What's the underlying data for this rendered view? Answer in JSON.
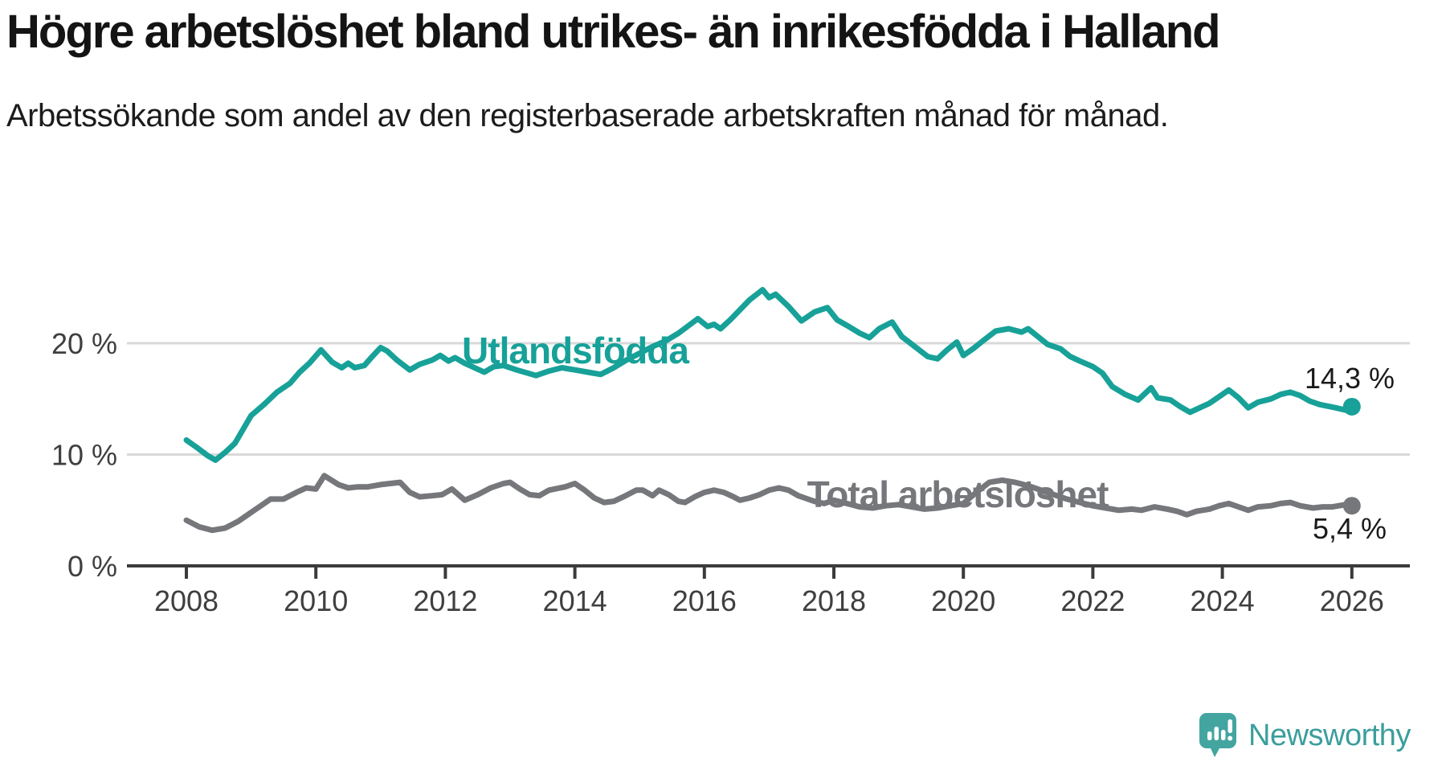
{
  "header": {
    "title": "Högre arbetslöshet bland utrikes- än inrikesfödda i Halland",
    "subtitle": "Arbetssökande som andel av den registerbaserade arbetskraften månad för månad."
  },
  "footer": {
    "brand": "Newsworthy",
    "logo_icon": "speech-bubble-bar-chart-icon"
  },
  "colors": {
    "teal": "#17a198",
    "gray": "#76777b",
    "axis": "#3b3b3b",
    "gridline": "#d9d9d9",
    "tick_label": "#3f3f3f",
    "value_label": "#1a1a1a",
    "logo_teal": "#44a5a0"
  },
  "chart_data": {
    "type": "line",
    "title": "Högre arbetslöshet bland utrikes- än inrikesfödda i Halland",
    "xlabel": "",
    "ylabel": "",
    "xlim": [
      2007.1,
      2026.9
    ],
    "ylim": [
      0,
      25
    ],
    "x_ticks": [
      2008,
      2010,
      2012,
      2014,
      2016,
      2018,
      2020,
      2022,
      2024,
      2026
    ],
    "y_ticks": [
      {
        "value": 0,
        "label": "0 %"
      },
      {
        "value": 10,
        "label": "10 %"
      },
      {
        "value": 20,
        "label": "20 %"
      }
    ],
    "grid": "horizontal",
    "legend_position": "inline-labels",
    "series": [
      {
        "name": "Utlandsfödda",
        "color": "#17a198",
        "end_value_label": "14,3 %",
        "points": [
          [
            2008.0,
            11.3
          ],
          [
            2008.17,
            10.6
          ],
          [
            2008.33,
            9.9
          ],
          [
            2008.45,
            9.5
          ],
          [
            2008.6,
            10.2
          ],
          [
            2008.75,
            11.0
          ],
          [
            2009.0,
            13.5
          ],
          [
            2009.2,
            14.5
          ],
          [
            2009.4,
            15.6
          ],
          [
            2009.6,
            16.4
          ],
          [
            2009.75,
            17.4
          ],
          [
            2009.9,
            18.2
          ],
          [
            2010.08,
            19.4
          ],
          [
            2010.25,
            18.3
          ],
          [
            2010.4,
            17.8
          ],
          [
            2010.5,
            18.2
          ],
          [
            2010.6,
            17.8
          ],
          [
            2010.75,
            18.0
          ],
          [
            2010.87,
            18.8
          ],
          [
            2011.0,
            19.6
          ],
          [
            2011.1,
            19.3
          ],
          [
            2011.25,
            18.5
          ],
          [
            2011.45,
            17.6
          ],
          [
            2011.6,
            18.1
          ],
          [
            2011.8,
            18.5
          ],
          [
            2011.92,
            18.9
          ],
          [
            2012.05,
            18.4
          ],
          [
            2012.15,
            18.7
          ],
          [
            2012.3,
            18.2
          ],
          [
            2012.45,
            17.8
          ],
          [
            2012.6,
            17.4
          ],
          [
            2012.75,
            17.9
          ],
          [
            2012.9,
            18.0
          ],
          [
            2013.1,
            17.6
          ],
          [
            2013.4,
            17.1
          ],
          [
            2013.6,
            17.5
          ],
          [
            2013.8,
            17.8
          ],
          [
            2014.0,
            17.6
          ],
          [
            2014.2,
            17.4
          ],
          [
            2014.4,
            17.2
          ],
          [
            2014.6,
            17.8
          ],
          [
            2014.8,
            18.5
          ],
          [
            2015.0,
            19.1
          ],
          [
            2015.2,
            19.7
          ],
          [
            2015.4,
            20.2
          ],
          [
            2015.6,
            20.9
          ],
          [
            2015.9,
            22.2
          ],
          [
            2016.05,
            21.5
          ],
          [
            2016.15,
            21.7
          ],
          [
            2016.25,
            21.3
          ],
          [
            2016.4,
            22.1
          ],
          [
            2016.55,
            23.0
          ],
          [
            2016.7,
            23.9
          ],
          [
            2016.9,
            24.8
          ],
          [
            2017.0,
            24.1
          ],
          [
            2017.1,
            24.4
          ],
          [
            2017.3,
            23.3
          ],
          [
            2017.5,
            22.0
          ],
          [
            2017.7,
            22.8
          ],
          [
            2017.9,
            23.2
          ],
          [
            2018.05,
            22.1
          ],
          [
            2018.2,
            21.6
          ],
          [
            2018.4,
            20.9
          ],
          [
            2018.55,
            20.5
          ],
          [
            2018.7,
            21.3
          ],
          [
            2018.9,
            21.9
          ],
          [
            2019.05,
            20.6
          ],
          [
            2019.25,
            19.7
          ],
          [
            2019.45,
            18.8
          ],
          [
            2019.6,
            18.6
          ],
          [
            2019.75,
            19.4
          ],
          [
            2019.9,
            20.1
          ],
          [
            2020.0,
            18.9
          ],
          [
            2020.15,
            19.5
          ],
          [
            2020.3,
            20.2
          ],
          [
            2020.5,
            21.1
          ],
          [
            2020.7,
            21.3
          ],
          [
            2020.9,
            21.0
          ],
          [
            2021.0,
            21.3
          ],
          [
            2021.15,
            20.6
          ],
          [
            2021.3,
            19.9
          ],
          [
            2021.5,
            19.5
          ],
          [
            2021.65,
            18.8
          ],
          [
            2021.8,
            18.4
          ],
          [
            2022.0,
            17.9
          ],
          [
            2022.15,
            17.3
          ],
          [
            2022.3,
            16.1
          ],
          [
            2022.5,
            15.4
          ],
          [
            2022.7,
            14.9
          ],
          [
            2022.9,
            16.0
          ],
          [
            2023.0,
            15.1
          ],
          [
            2023.2,
            14.9
          ],
          [
            2023.35,
            14.3
          ],
          [
            2023.5,
            13.8
          ],
          [
            2023.65,
            14.2
          ],
          [
            2023.8,
            14.6
          ],
          [
            2024.0,
            15.4
          ],
          [
            2024.1,
            15.8
          ],
          [
            2024.25,
            15.1
          ],
          [
            2024.4,
            14.2
          ],
          [
            2024.55,
            14.7
          ],
          [
            2024.75,
            15.0
          ],
          [
            2024.9,
            15.4
          ],
          [
            2025.05,
            15.6
          ],
          [
            2025.2,
            15.3
          ],
          [
            2025.35,
            14.8
          ],
          [
            2025.5,
            14.5
          ],
          [
            2025.75,
            14.2
          ],
          [
            2025.9,
            14.0
          ],
          [
            2026.0,
            14.3
          ]
        ]
      },
      {
        "name": "Total arbetslöshet",
        "color": "#76777b",
        "end_value_label": "5,4 %",
        "points": [
          [
            2008.0,
            4.1
          ],
          [
            2008.2,
            3.5
          ],
          [
            2008.4,
            3.2
          ],
          [
            2008.6,
            3.4
          ],
          [
            2008.8,
            4.0
          ],
          [
            2009.0,
            4.8
          ],
          [
            2009.15,
            5.4
          ],
          [
            2009.3,
            6.0
          ],
          [
            2009.5,
            6.0
          ],
          [
            2009.7,
            6.6
          ],
          [
            2009.85,
            7.0
          ],
          [
            2010.0,
            6.9
          ],
          [
            2010.13,
            8.1
          ],
          [
            2010.35,
            7.3
          ],
          [
            2010.5,
            7.0
          ],
          [
            2010.65,
            7.1
          ],
          [
            2010.8,
            7.1
          ],
          [
            2011.0,
            7.3
          ],
          [
            2011.15,
            7.4
          ],
          [
            2011.3,
            7.5
          ],
          [
            2011.45,
            6.6
          ],
          [
            2011.6,
            6.2
          ],
          [
            2011.8,
            6.3
          ],
          [
            2011.95,
            6.4
          ],
          [
            2012.1,
            6.9
          ],
          [
            2012.3,
            5.9
          ],
          [
            2012.5,
            6.4
          ],
          [
            2012.7,
            7.0
          ],
          [
            2012.9,
            7.4
          ],
          [
            2013.0,
            7.5
          ],
          [
            2013.15,
            6.9
          ],
          [
            2013.3,
            6.4
          ],
          [
            2013.45,
            6.3
          ],
          [
            2013.6,
            6.8
          ],
          [
            2013.85,
            7.1
          ],
          [
            2014.0,
            7.4
          ],
          [
            2014.15,
            6.8
          ],
          [
            2014.3,
            6.1
          ],
          [
            2014.45,
            5.7
          ],
          [
            2014.6,
            5.8
          ],
          [
            2014.75,
            6.2
          ],
          [
            2014.95,
            6.8
          ],
          [
            2015.05,
            6.8
          ],
          [
            2015.2,
            6.3
          ],
          [
            2015.3,
            6.8
          ],
          [
            2015.45,
            6.4
          ],
          [
            2015.6,
            5.8
          ],
          [
            2015.7,
            5.7
          ],
          [
            2015.85,
            6.2
          ],
          [
            2016.0,
            6.6
          ],
          [
            2016.15,
            6.8
          ],
          [
            2016.3,
            6.6
          ],
          [
            2016.45,
            6.2
          ],
          [
            2016.55,
            5.9
          ],
          [
            2016.7,
            6.1
          ],
          [
            2016.85,
            6.4
          ],
          [
            2017.0,
            6.8
          ],
          [
            2017.15,
            7.0
          ],
          [
            2017.3,
            6.8
          ],
          [
            2017.45,
            6.3
          ],
          [
            2017.55,
            6.1
          ],
          [
            2017.7,
            5.8
          ],
          [
            2017.85,
            5.6
          ],
          [
            2018.0,
            5.9
          ],
          [
            2018.2,
            5.6
          ],
          [
            2018.4,
            5.3
          ],
          [
            2018.6,
            5.2
          ],
          [
            2018.8,
            5.4
          ],
          [
            2019.0,
            5.5
          ],
          [
            2019.2,
            5.3
          ],
          [
            2019.4,
            5.1
          ],
          [
            2019.6,
            5.2
          ],
          [
            2019.8,
            5.4
          ],
          [
            2020.0,
            5.6
          ],
          [
            2020.2,
            6.6
          ],
          [
            2020.4,
            7.5
          ],
          [
            2020.6,
            7.7
          ],
          [
            2020.8,
            7.5
          ],
          [
            2021.0,
            7.2
          ],
          [
            2021.2,
            6.8
          ],
          [
            2021.4,
            6.4
          ],
          [
            2021.6,
            6.0
          ],
          [
            2021.8,
            5.7
          ],
          [
            2022.0,
            5.4
          ],
          [
            2022.2,
            5.2
          ],
          [
            2022.4,
            5.0
          ],
          [
            2022.6,
            5.1
          ],
          [
            2022.75,
            5.0
          ],
          [
            2022.95,
            5.3
          ],
          [
            2023.15,
            5.1
          ],
          [
            2023.3,
            4.9
          ],
          [
            2023.45,
            4.6
          ],
          [
            2023.6,
            4.9
          ],
          [
            2023.8,
            5.1
          ],
          [
            2023.95,
            5.4
          ],
          [
            2024.1,
            5.6
          ],
          [
            2024.3,
            5.2
          ],
          [
            2024.4,
            5.0
          ],
          [
            2024.55,
            5.3
          ],
          [
            2024.75,
            5.4
          ],
          [
            2024.9,
            5.6
          ],
          [
            2025.05,
            5.7
          ],
          [
            2025.2,
            5.4
          ],
          [
            2025.4,
            5.2
          ],
          [
            2025.55,
            5.3
          ],
          [
            2025.7,
            5.3
          ],
          [
            2025.9,
            5.5
          ],
          [
            2026.0,
            5.4
          ]
        ]
      }
    ]
  },
  "annotations": {
    "utl_label": "Utlandsfödda",
    "tot_label": "Total arbetslöshet",
    "utl_value": "14,3 %",
    "tot_value": "5,4 %"
  }
}
